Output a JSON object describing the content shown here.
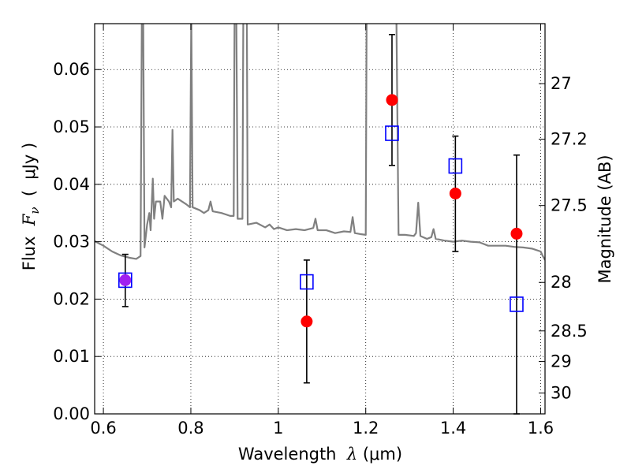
{
  "chart_data": {
    "type": "scatter",
    "xlabel": {
      "pre": "Wavelength  ",
      "sym": "λ",
      "post": " (μm)"
    },
    "ylabel": {
      "pre": "Flux  ",
      "sym": "F",
      "sub": "ν",
      "post": "  (  μJy )"
    },
    "y2label": "Magnitude (AB)",
    "xlim": [
      0.58,
      1.61
    ],
    "ylim": [
      0.0,
      0.068
    ],
    "grid": true,
    "x_ticks": [
      {
        "v": 0.6,
        "label": "0.6"
      },
      {
        "v": 0.8,
        "label": "0.8"
      },
      {
        "v": 1.0,
        "label": "1"
      },
      {
        "v": 1.2,
        "label": "1.2"
      },
      {
        "v": 1.4,
        "label": "1.4"
      },
      {
        "v": 1.6,
        "label": "1.6"
      }
    ],
    "y_ticks": [
      {
        "v": 0.0,
        "label": "0.00"
      },
      {
        "v": 0.01,
        "label": "0.01"
      },
      {
        "v": 0.02,
        "label": "0.02"
      },
      {
        "v": 0.03,
        "label": "0.03"
      },
      {
        "v": 0.04,
        "label": "0.04"
      },
      {
        "v": 0.05,
        "label": "0.05"
      },
      {
        "v": 0.06,
        "label": "0.06"
      }
    ],
    "y2_ticks": [
      {
        "mag": 27,
        "label": "27"
      },
      {
        "mag": 27.2,
        "label": "27.2"
      },
      {
        "mag": 27.5,
        "label": "27.5"
      },
      {
        "mag": 28,
        "label": "28"
      },
      {
        "mag": 28.5,
        "label": "28.5"
      },
      {
        "mag": 29,
        "label": "29"
      },
      {
        "mag": 30,
        "label": "30"
      }
    ],
    "model_spectrum": {
      "color": "#808080",
      "points": [
        [
          0.58,
          0.0301
        ],
        [
          0.6,
          0.0293
        ],
        [
          0.62,
          0.0283
        ],
        [
          0.64,
          0.0276
        ],
        [
          0.66,
          0.0272
        ],
        [
          0.675,
          0.027
        ],
        [
          0.685,
          0.0275
        ],
        [
          0.688,
          0.07
        ],
        [
          0.691,
          0.07
        ],
        [
          0.694,
          0.029
        ],
        [
          0.7,
          0.033
        ],
        [
          0.705,
          0.035
        ],
        [
          0.708,
          0.032
        ],
        [
          0.713,
          0.041
        ],
        [
          0.716,
          0.034
        ],
        [
          0.72,
          0.037
        ],
        [
          0.73,
          0.037
        ],
        [
          0.735,
          0.034
        ],
        [
          0.74,
          0.038
        ],
        [
          0.75,
          0.037
        ],
        [
          0.755,
          0.036
        ],
        [
          0.758,
          0.0495
        ],
        [
          0.761,
          0.037
        ],
        [
          0.77,
          0.0375
        ],
        [
          0.78,
          0.037
        ],
        [
          0.79,
          0.0365
        ],
        [
          0.798,
          0.036
        ],
        [
          0.801,
          0.07
        ],
        [
          0.804,
          0.036
        ],
        [
          0.82,
          0.0355
        ],
        [
          0.83,
          0.035
        ],
        [
          0.84,
          0.0355
        ],
        [
          0.845,
          0.037
        ],
        [
          0.85,
          0.0353
        ],
        [
          0.87,
          0.035
        ],
        [
          0.89,
          0.0345
        ],
        [
          0.898,
          0.0345
        ],
        [
          0.9,
          0.07
        ],
        [
          0.904,
          0.07
        ],
        [
          0.907,
          0.034
        ],
        [
          0.918,
          0.034
        ],
        [
          0.92,
          0.07
        ],
        [
          0.924,
          0.07
        ],
        [
          0.928,
          0.07
        ],
        [
          0.93,
          0.033
        ],
        [
          0.95,
          0.0333
        ],
        [
          0.97,
          0.0325
        ],
        [
          0.98,
          0.033
        ],
        [
          0.99,
          0.0322
        ],
        [
          1.0,
          0.0325
        ],
        [
          1.02,
          0.032
        ],
        [
          1.04,
          0.0322
        ],
        [
          1.06,
          0.032
        ],
        [
          1.08,
          0.0324
        ],
        [
          1.085,
          0.034
        ],
        [
          1.09,
          0.032
        ],
        [
          1.11,
          0.032
        ],
        [
          1.13,
          0.0315
        ],
        [
          1.15,
          0.0318
        ],
        [
          1.165,
          0.0317
        ],
        [
          1.17,
          0.0343
        ],
        [
          1.175,
          0.0315
        ],
        [
          1.19,
          0.0313
        ],
        [
          1.2,
          0.0312
        ],
        [
          1.202,
          0.07
        ],
        [
          1.23,
          0.07
        ],
        [
          1.26,
          0.07
        ],
        [
          1.27,
          0.07
        ],
        [
          1.275,
          0.0312
        ],
        [
          1.29,
          0.0312
        ],
        [
          1.31,
          0.031
        ],
        [
          1.315,
          0.0315
        ],
        [
          1.32,
          0.0368
        ],
        [
          1.325,
          0.031
        ],
        [
          1.34,
          0.0305
        ],
        [
          1.35,
          0.0308
        ],
        [
          1.355,
          0.0322
        ],
        [
          1.36,
          0.0305
        ],
        [
          1.38,
          0.0302
        ],
        [
          1.4,
          0.03
        ],
        [
          1.42,
          0.0302
        ],
        [
          1.44,
          0.03
        ],
        [
          1.46,
          0.0299
        ],
        [
          1.48,
          0.0293
        ],
        [
          1.5,
          0.0293
        ],
        [
          1.52,
          0.0293
        ],
        [
          1.54,
          0.0291
        ],
        [
          1.56,
          0.029
        ],
        [
          1.58,
          0.0288
        ],
        [
          1.6,
          0.0283
        ],
        [
          1.605,
          0.0275
        ],
        [
          1.61,
          0.0268
        ]
      ]
    },
    "observed": {
      "color": "#ff0000",
      "errorbar_color": "#000000",
      "points": [
        {
          "x": 0.65,
          "y": 0.0233,
          "err_low": 0.0187,
          "err_high": 0.0278
        },
        {
          "x": 1.065,
          "y": 0.0161,
          "err_low": 0.0054,
          "err_high": 0.0268
        },
        {
          "x": 1.26,
          "y": 0.0547,
          "err_low": 0.0433,
          "err_high": 0.0661
        },
        {
          "x": 1.405,
          "y": 0.0384,
          "err_low": 0.0283,
          "err_high": 0.0484
        },
        {
          "x": 1.545,
          "y": 0.0314,
          "err_low": 0.0,
          "err_high": 0.0451
        }
      ]
    },
    "model_bands": {
      "color": "#0000ff",
      "points": [
        {
          "x": 0.65,
          "y": 0.0233
        },
        {
          "x": 1.065,
          "y": 0.023
        },
        {
          "x": 1.26,
          "y": 0.0489
        },
        {
          "x": 1.405,
          "y": 0.0432
        },
        {
          "x": 1.545,
          "y": 0.0191
        }
      ]
    },
    "overlap_marker_color": "#a020f0"
  }
}
